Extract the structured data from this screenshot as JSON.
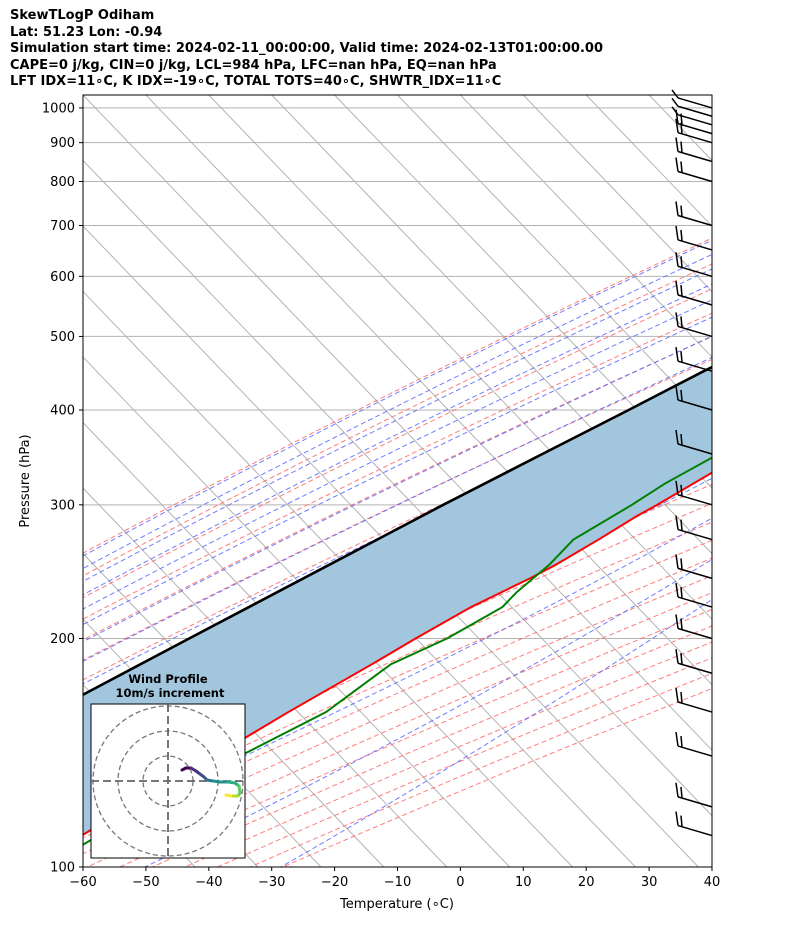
{
  "header": {
    "line1": "SkewTLogP Odiham",
    "line2": "Lat: 51.23   Lon: -0.94",
    "line3": "Simulation start time: 2024-02-11_00:00:00, Valid time: 2024-02-13T01:00:00.00",
    "line4": "CAPE=0 j/kg, CIN=0 j/kg, LCL=984 hPa, LFC=nan hPa, EQ=nan hPa",
    "line5": "LFT IDX=11∘C, K IDX=-19∘C, TOTAL TOTS=40∘C, SHWTR_IDX=11∘C"
  },
  "chart_data": {
    "type": "skewt",
    "xlabel": "Temperature (∘C)",
    "ylabel": "Pressure (hPa)",
    "xlim": [
      -60,
      40
    ],
    "ylim": [
      1040,
      100
    ],
    "y_scale": "log",
    "x_ticks": [
      "−60",
      "−50",
      "−40",
      "−30",
      "−20",
      "−10",
      "0",
      "10",
      "20",
      "30",
      "40"
    ],
    "x_tick_values": [
      -60,
      -50,
      -40,
      -30,
      -20,
      -10,
      0,
      10,
      20,
      30,
      40
    ],
    "y_ticks": [
      "1000",
      "900",
      "800",
      "700",
      "600",
      "500",
      "400",
      "300",
      "200",
      "100"
    ],
    "y_tick_values": [
      1000,
      900,
      800,
      700,
      600,
      500,
      400,
      300,
      200,
      100
    ],
    "grid": true,
    "colors": {
      "temperature": "#ff0000",
      "dewpoint": "#008000",
      "parcel": "#000000",
      "fill": "#a3c6df",
      "dry_adiabat": "#ff6666",
      "moist_adiabat": "#5566ff",
      "mixing_ratio": "#9b59b6",
      "isotherm": "#b3b3b3"
    },
    "temperature_profile": [
      [
        1000,
        6
      ],
      [
        975,
        7
      ],
      [
        950,
        6
      ],
      [
        900,
        4
      ],
      [
        850,
        3.5
      ],
      [
        800,
        3.5
      ],
      [
        750,
        4
      ],
      [
        700,
        3
      ],
      [
        650,
        1
      ],
      [
        600,
        -1.5
      ],
      [
        550,
        -4.5
      ],
      [
        500,
        -7.5
      ],
      [
        450,
        -10.5
      ],
      [
        400,
        -13.5
      ],
      [
        350,
        -18
      ],
      [
        300,
        -24
      ],
      [
        290,
        -25.5
      ],
      [
        270,
        -28
      ],
      [
        250,
        -31
      ],
      [
        240,
        -33
      ],
      [
        220,
        -38
      ],
      [
        200,
        -42
      ],
      [
        185,
        -45
      ],
      [
        160,
        -51
      ],
      [
        140,
        -56
      ],
      [
        120,
        -62
      ],
      [
        110,
        -65
      ],
      [
        100,
        -68
      ]
    ],
    "dewpoint_profile": [
      [
        1000,
        5
      ],
      [
        975,
        4
      ],
      [
        950,
        3
      ],
      [
        900,
        1
      ],
      [
        860,
        -1.5
      ],
      [
        830,
        -4
      ],
      [
        800,
        -9
      ],
      [
        780,
        -19
      ],
      [
        720,
        -36
      ],
      [
        700,
        -36
      ],
      [
        670,
        -34
      ],
      [
        640,
        -31
      ],
      [
        600,
        -31.5
      ],
      [
        560,
        -31
      ],
      [
        500,
        -14
      ],
      [
        480,
        -11
      ],
      [
        450,
        -11
      ],
      [
        400,
        -15
      ],
      [
        350,
        -22
      ],
      [
        320,
        -26
      ],
      [
        300,
        -28
      ],
      [
        270,
        -32
      ],
      [
        250,
        -32
      ],
      [
        230,
        -33
      ],
      [
        220,
        -33
      ],
      [
        200,
        -37
      ],
      [
        185,
        -42
      ],
      [
        160,
        -45
      ],
      [
        140,
        -52
      ],
      [
        120,
        -59
      ],
      [
        100,
        -66
      ]
    ],
    "parcel_profile": [
      [
        1000,
        5
      ],
      [
        984,
        4.5
      ],
      [
        950,
        3
      ],
      [
        900,
        0.5
      ],
      [
        850,
        -2
      ],
      [
        800,
        -5.5
      ],
      [
        750,
        -9
      ],
      [
        700,
        -12.5
      ],
      [
        650,
        -16.5
      ],
      [
        600,
        -21
      ],
      [
        550,
        -26
      ],
      [
        500,
        -31
      ],
      [
        450,
        -37
      ],
      [
        400,
        -43
      ],
      [
        350,
        -50
      ],
      [
        300,
        -58
      ],
      [
        250,
        -67
      ],
      [
        200,
        -78
      ],
      [
        150,
        -92
      ],
      [
        100,
        -110
      ]
    ],
    "wind_barb_levels": [
      1000,
      975,
      950,
      925,
      900,
      850,
      800,
      700,
      650,
      600,
      550,
      500,
      450,
      400,
      350,
      300,
      270,
      240,
      220,
      200,
      180,
      160,
      140,
      120,
      110
    ],
    "hodograph": {
      "title": "Wind Profile",
      "subtitle": "10m/s increment",
      "rings": 3
    }
  }
}
